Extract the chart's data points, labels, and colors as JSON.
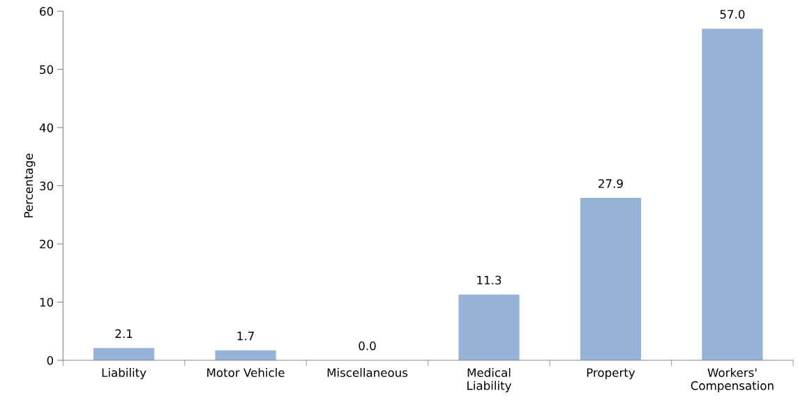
{
  "chart_data": {
    "type": "bar",
    "ylabel": "Percentage",
    "categories": [
      "Liability",
      "Motor Vehicle",
      "Miscellaneous",
      "Medical\nLiability",
      "Property",
      "Workers'\nCompensation"
    ],
    "values": [
      2.1,
      1.7,
      0.0,
      11.3,
      27.9,
      57.0
    ],
    "value_labels": [
      "2.1",
      "1.7",
      "0.0",
      "11.3",
      "27.9",
      "57.0"
    ],
    "color": "#95b3d7",
    "ylim": [
      0,
      60
    ],
    "yticks": [
      0,
      10,
      20,
      30,
      40,
      50,
      60
    ],
    "grid": false
  }
}
